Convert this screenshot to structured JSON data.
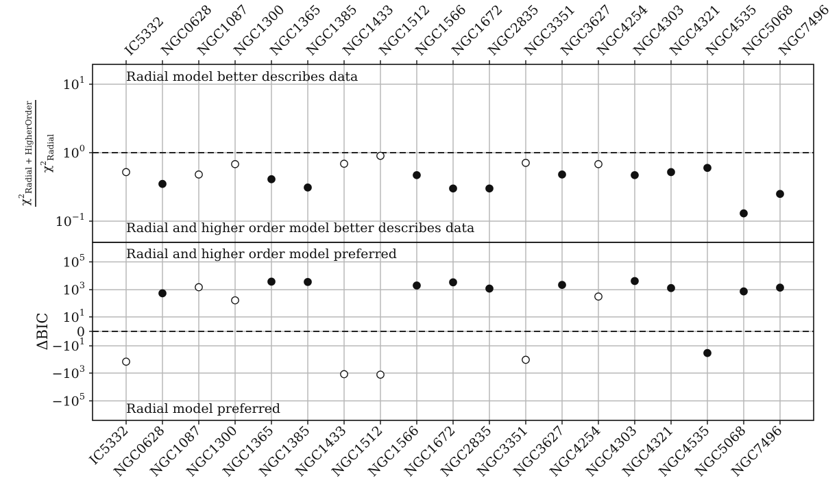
{
  "chart_data": [
    {
      "type": "scatter",
      "panel": "top",
      "ylabel_numerator": "χ²",
      "ylabel_numerator_sub": "Radial + HigherOrder",
      "ylabel_denominator": "χ²",
      "ylabel_denominator_sub": "Radial",
      "yscale": "log",
      "ylim": [
        0.03,
        20
      ],
      "ytick_labels": [
        {
          "base": "10",
          "exp": "1",
          "value": 10
        },
        {
          "base": "10",
          "exp": "0",
          "value": 1
        },
        {
          "base": "10",
          "exp": "−1",
          "value": 0.1
        }
      ],
      "reference_line": 1,
      "annotations": {
        "top": "Radial model better describes data",
        "bottom": "Radial and higher order model better describes data"
      },
      "grid": true,
      "categories": [
        "IC5332",
        "NGC0628",
        "NGC1087",
        "NGC1300",
        "NGC1365",
        "NGC1385",
        "NGC1433",
        "NGC1512",
        "NGC1566",
        "NGC1672",
        "NGC2835",
        "NGC3351",
        "NGC3627",
        "NGC4254",
        "NGC4303",
        "NGC4321",
        "NGC4535",
        "NGC5068",
        "NGC7496"
      ],
      "values": [
        0.52,
        0.35,
        0.48,
        0.68,
        0.41,
        0.31,
        0.69,
        0.9,
        0.47,
        0.3,
        0.3,
        0.71,
        0.48,
        0.68,
        0.47,
        0.52,
        0.6,
        0.13,
        0.25
      ],
      "filled": [
        false,
        true,
        false,
        false,
        true,
        true,
        false,
        false,
        true,
        true,
        true,
        false,
        true,
        false,
        true,
        true,
        true,
        true,
        true
      ]
    },
    {
      "type": "scatter",
      "panel": "bottom",
      "ylabel": "ΔBIC",
      "yscale": "symlog",
      "ylim": [
        -300000,
        300000
      ],
      "ytick_labels": [
        {
          "base": "10",
          "exp": "5",
          "value": 100000
        },
        {
          "base": "10",
          "exp": "3",
          "value": 1000
        },
        {
          "base": "10",
          "exp": "1",
          "value": 10
        },
        {
          "base": "0",
          "exp": "",
          "value": 0
        },
        {
          "base": "−10",
          "exp": "1",
          "value": -10
        },
        {
          "base": "−10",
          "exp": "3",
          "value": -1000
        },
        {
          "base": "−10",
          "exp": "5",
          "value": -100000
        }
      ],
      "reference_line": 0,
      "annotations": {
        "top": "Radial and higher order model preferred",
        "bottom": "Radial model preferred"
      },
      "grid": true,
      "categories": [
        "IC5332",
        "NGC0628",
        "NGC1087",
        "NGC1300",
        "NGC1365",
        "NGC1385",
        "NGC1433",
        "NGC1512",
        "NGC1566",
        "NGC1672",
        "NGC2835",
        "NGC3351",
        "NGC3627",
        "NGC4254",
        "NGC4303",
        "NGC4321",
        "NGC4535",
        "NGC5068",
        "NGC7496"
      ],
      "values": [
        -150,
        550,
        1500,
        170,
        3800,
        3600,
        -1200,
        -1300,
        2000,
        3400,
        1200,
        -110,
        2200,
        320,
        4200,
        1300,
        -35,
        750,
        1400
      ],
      "filled": [
        false,
        true,
        false,
        false,
        true,
        true,
        false,
        false,
        true,
        true,
        true,
        false,
        true,
        false,
        true,
        true,
        true,
        true,
        true
      ]
    }
  ]
}
